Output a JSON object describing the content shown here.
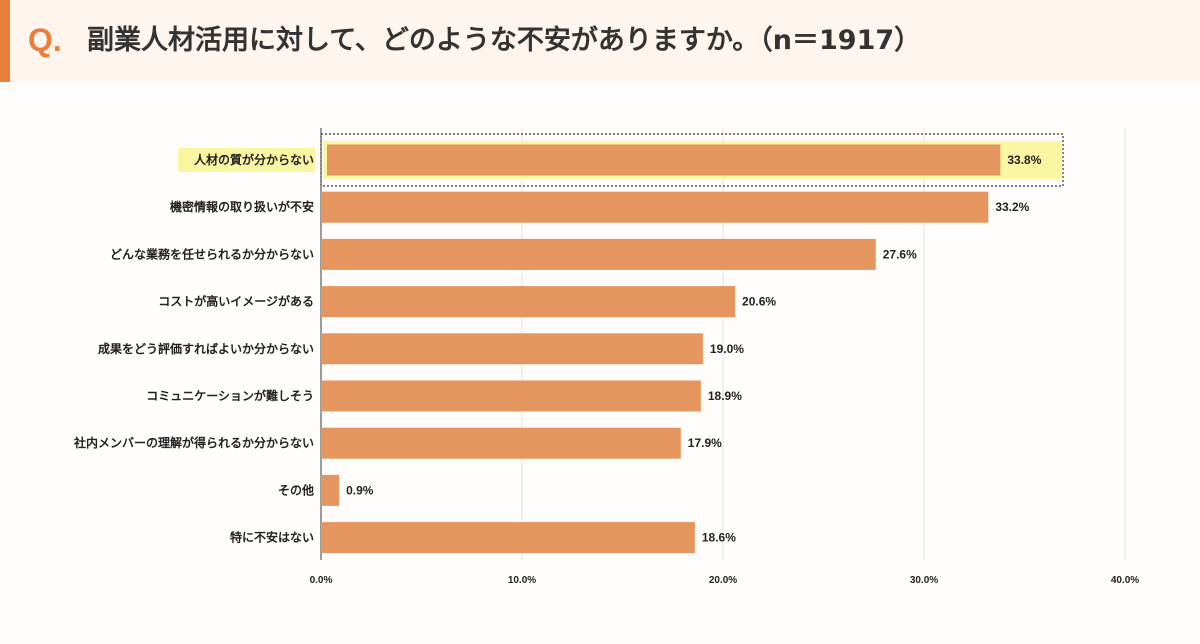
{
  "header": {
    "q_mark": "Q.",
    "question": "副業人材活用に対して、どのような不安がありますか。（n＝1917）"
  },
  "colors": {
    "accent": "#e97f3c",
    "bar": "#e5955e",
    "header_bg": "#fdf5ee",
    "highlight": "#fbf6a2",
    "grid": "#e9dede"
  },
  "chart_data": {
    "type": "bar",
    "orientation": "horizontal",
    "categories": [
      "人材の質が分からない",
      "機密情報の取り扱いが不安",
      "どんな業務を任せられるか分からない",
      "コストが高いイメージがある",
      "成果をどう評価すればよいか分からない",
      "コミュニケーションが難しそう",
      "社内メンバーの理解が得られるか分からない",
      "その他",
      "特に不安はない"
    ],
    "values": [
      33.8,
      33.2,
      27.6,
      20.6,
      19.0,
      18.9,
      17.9,
      0.9,
      18.6
    ],
    "value_labels": [
      "33.8%",
      "33.2%",
      "27.6%",
      "20.6%",
      "19.0%",
      "18.9%",
      "17.9%",
      "0.9%",
      "18.6%"
    ],
    "xlim": [
      0,
      40
    ],
    "x_ticks": [
      0,
      10,
      20,
      30,
      40
    ],
    "x_tick_labels": [
      "0.0%",
      "10.0%",
      "20.0%",
      "30.0%",
      "40.0%"
    ],
    "highlighted_index": 0,
    "grid": true
  }
}
